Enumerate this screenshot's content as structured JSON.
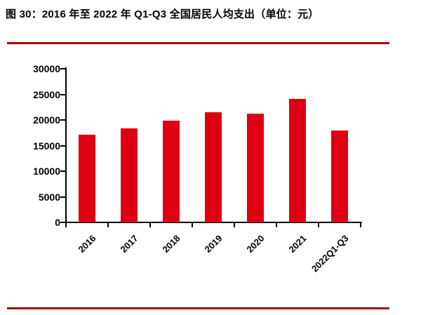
{
  "figure": {
    "title": "图 30：2016 年至 2022 年 Q1-Q3 全国居民人均支出（单位：元）"
  },
  "colors": {
    "bar": "#DE0012",
    "rule": "#A40000",
    "axis": "#000000",
    "text": "#000000",
    "background": "#FFFFFF"
  },
  "chart_data": {
    "type": "bar",
    "title": "图 30：2016 年至 2022 年 Q1-Q3 全国居民人均支出（单位：元）",
    "categories": [
      "2016",
      "2017",
      "2018",
      "2019",
      "2020",
      "2021",
      "2022Q1-Q3"
    ],
    "values": [
      17111,
      18322,
      19853,
      21559,
      21210,
      24100,
      17878
    ],
    "xlabel": "",
    "ylabel": "",
    "unit": "元",
    "ylim": [
      0,
      30000
    ],
    "ytick_step": 5000,
    "yticks": [
      "30000",
      "25000",
      "20000",
      "15000",
      "10000",
      "5000",
      "0"
    ],
    "grid": false,
    "legend_position": "none",
    "x_tick_label_rotation_deg": 45,
    "bar_color": "#DE0012"
  }
}
